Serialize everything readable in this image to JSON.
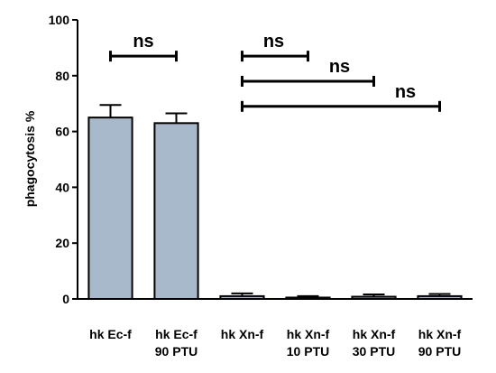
{
  "chart_data": {
    "type": "bar",
    "y_label": "phagocytosis %",
    "categories": [
      [
        "hk Ec-f"
      ],
      [
        "hk Ec-f",
        "90 PTU"
      ],
      [
        "hk Xn-f"
      ],
      [
        "hk Xn-f",
        "10 PTU"
      ],
      [
        "hk Xn-f",
        "30 PTU"
      ],
      [
        "hk Xn-f",
        "90 PTU"
      ]
    ],
    "values": [
      65,
      63,
      1,
      0.5,
      0.8,
      1
    ],
    "errors": [
      4.5,
      3.5,
      1,
      0.5,
      0.8,
      0.8
    ],
    "color": "#a9b9cc",
    "ylim": [
      0,
      100
    ],
    "yticks": [
      0,
      20,
      40,
      60,
      80,
      100
    ],
    "annotations": [
      {
        "text": "ns",
        "from": 0,
        "to": 1,
        "y": 87
      },
      {
        "text": "ns",
        "from": 2,
        "to": 3,
        "y": 87
      },
      {
        "text": "ns",
        "from": 2,
        "to": 4,
        "y": 78
      },
      {
        "text": "ns",
        "from": 2,
        "to": 5,
        "y": 69
      }
    ]
  }
}
